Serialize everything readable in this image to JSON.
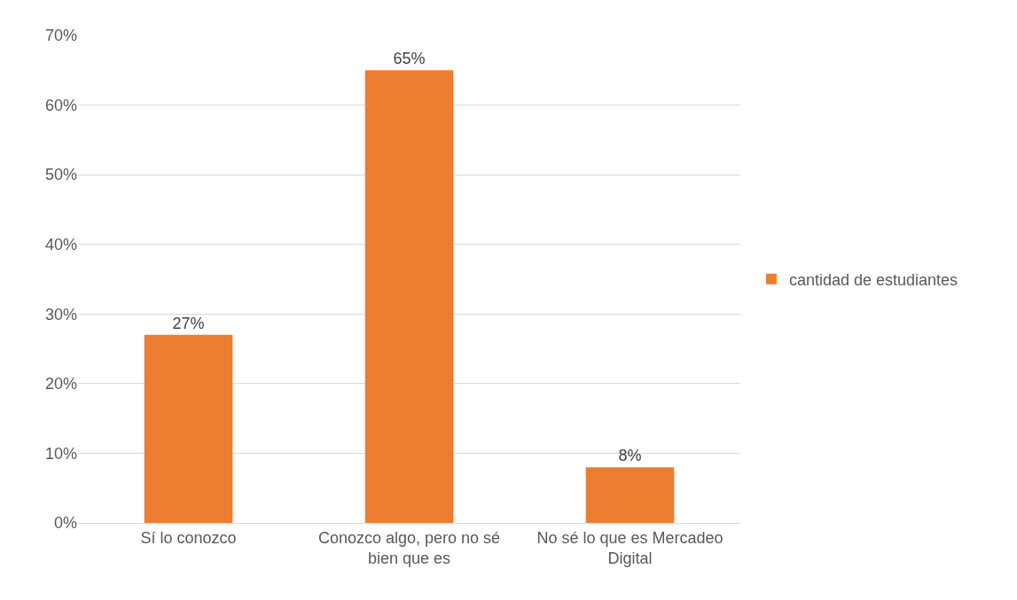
{
  "chart_data": {
    "type": "bar",
    "categories": [
      "Sí lo conozco",
      "Conozco algo, pero no sé bien que es",
      "No sé lo que es Mercadeo Digital"
    ],
    "series": [
      {
        "name": "cantidad de estudiantes",
        "color": "#ed7d31",
        "values": [
          27,
          65,
          8
        ],
        "value_labels": [
          "27%",
          "65%",
          "8%"
        ]
      }
    ],
    "ylim": [
      0,
      70
    ],
    "yticks": [
      {
        "value": 0,
        "label": "0%"
      },
      {
        "value": 10,
        "label": "10%"
      },
      {
        "value": 20,
        "label": "20%"
      },
      {
        "value": 30,
        "label": "30%"
      },
      {
        "value": 40,
        "label": "40%"
      },
      {
        "value": 50,
        "label": "50%"
      },
      {
        "value": 60,
        "label": "60%"
      },
      {
        "value": 70,
        "label": "70%"
      }
    ],
    "grid": "y",
    "legend": "right"
  }
}
